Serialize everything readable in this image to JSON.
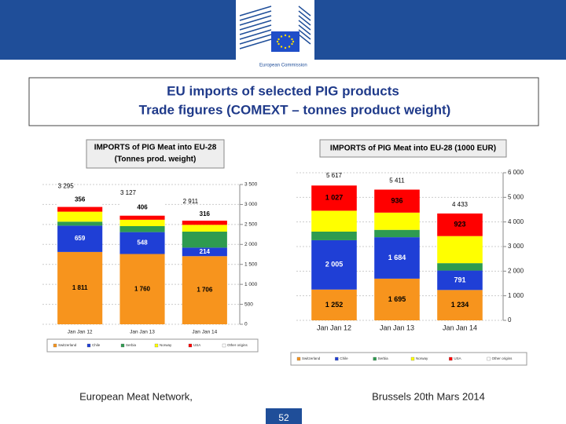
{
  "slide": {
    "logo_text": "European Commission",
    "title": "EU imports of selected PIG products",
    "subtitle": "Trade figures (COMEXT – tonnes product weight)",
    "footer_left": "European Meat Network,",
    "footer_right": "Brussels 20th Mars 2014",
    "page": "52"
  },
  "chart_data": [
    {
      "type": "bar",
      "stacked": true,
      "title": "IMPORTS of PIG Meat into EU-28",
      "subtitle": "(Tonnes prod. weight)",
      "categories": [
        "Jan Jan 12",
        "Jan Jan 13",
        "Jan Jan 14"
      ],
      "series": [
        {
          "name": "Switzerland",
          "color": "#f7941d",
          "values": [
            1811,
            1760,
            1706
          ],
          "value_labels": [
            "1 811",
            "1 760",
            "1 706"
          ]
        },
        {
          "name": "Chile",
          "color": "#1f3fd6",
          "values": [
            659,
            548,
            214
          ],
          "value_labels": [
            "659",
            "548",
            "214"
          ]
        },
        {
          "name": "Serbia",
          "color": "#2e9b50",
          "values": [
            100,
            150,
            400
          ],
          "value_labels": [
            null,
            null,
            null
          ]
        },
        {
          "name": "Norway",
          "color": "#ffff00",
          "values": [
            250,
            160,
            170
          ],
          "value_labels": [
            null,
            null,
            null
          ]
        },
        {
          "name": "USA",
          "color": "#ff0000",
          "values": [
            119,
            103,
            105
          ],
          "value_labels": [
            null,
            null,
            null
          ]
        },
        {
          "name": "Other origins",
          "color": "#ffffff",
          "values": [
            356,
            406,
            316
          ],
          "value_labels": [
            "356",
            "406",
            "316"
          ]
        }
      ],
      "totals": [
        3295,
        3127,
        2911
      ],
      "total_labels": [
        "3 295",
        "3 127",
        "2 911"
      ],
      "ylim": [
        0,
        3500
      ],
      "yticks": [
        0,
        500,
        {
          "value": 1000,
          "label": "1 000"
        },
        {
          "value": 1500,
          "label": "1 500"
        },
        {
          "value": 2000,
          "label": "2 000"
        },
        {
          "value": 2500,
          "label": "2 500"
        },
        {
          "value": 3000,
          "label": "3 000"
        },
        {
          "value": 3500,
          "label": "3 500"
        }
      ],
      "grid": true
    },
    {
      "type": "bar",
      "stacked": true,
      "title": "IMPORTS of PIG Meat into EU-28 (1000 EUR)",
      "categories": [
        "Jan Jan 12",
        "Jan Jan 13",
        "Jan Jan 14"
      ],
      "series": [
        {
          "name": "Switzerland",
          "color": "#f7941d",
          "values": [
            1252,
            1695,
            1234
          ],
          "value_labels": [
            "1 252",
            "1 695",
            "1 234"
          ]
        },
        {
          "name": "Chile",
          "color": "#1f3fd6",
          "values": [
            2005,
            1684,
            791
          ],
          "value_labels": [
            "2 005",
            "1 684",
            "791"
          ]
        },
        {
          "name": "Serbia",
          "color": "#2e9b50",
          "values": [
            350,
            300,
            300
          ],
          "value_labels": [
            null,
            null,
            null
          ]
        },
        {
          "name": "Norway",
          "color": "#ffff00",
          "values": [
            850,
            700,
            1100
          ],
          "value_labels": [
            null,
            null,
            null
          ]
        },
        {
          "name": "USA",
          "color": "#ff0000",
          "values": [
            1027,
            936,
            923
          ],
          "value_labels": [
            "1 027",
            "936",
            "923"
          ]
        },
        {
          "name": "Other origins",
          "color": "#ffffff",
          "values": [
            133,
            96,
            85
          ],
          "value_labels": [
            null,
            null,
            null
          ]
        }
      ],
      "totals": [
        5617,
        5411,
        4433
      ],
      "total_labels": [
        "5 617",
        "5 411",
        "4 433"
      ],
      "ylim": [
        0,
        6000
      ],
      "yticks": [
        0,
        {
          "value": 1000,
          "label": "1 000"
        },
        {
          "value": 2000,
          "label": "2 000"
        },
        {
          "value": 3000,
          "label": "3 000"
        },
        {
          "value": 4000,
          "label": "4 000"
        },
        {
          "value": 5000,
          "label": "5 000"
        },
        {
          "value": 6000,
          "label": "6 000"
        }
      ],
      "grid": true
    }
  ]
}
